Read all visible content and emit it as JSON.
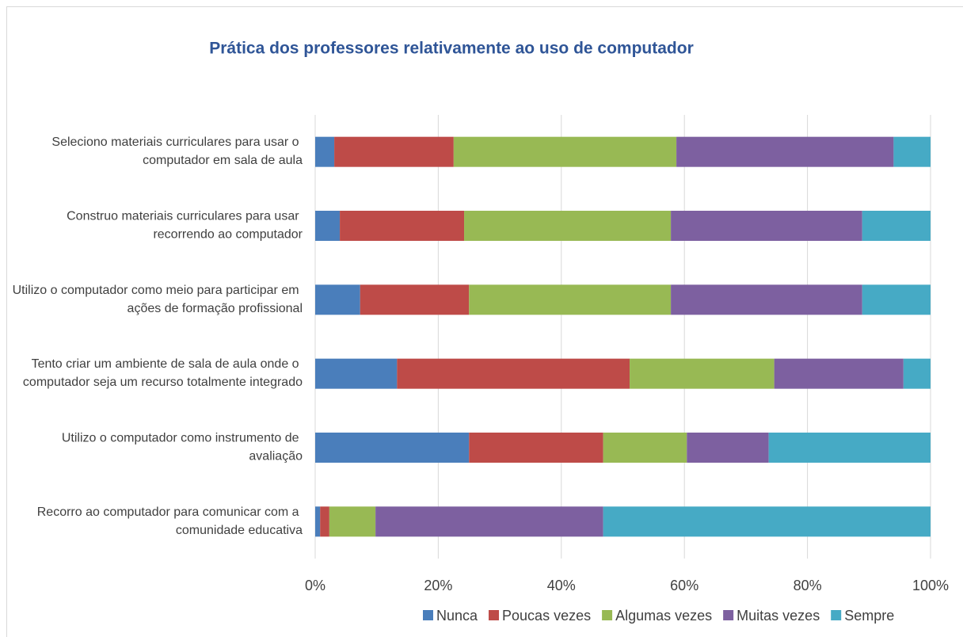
{
  "chart_data": {
    "type": "stacked_barh",
    "title": "Prática dos professores relativamente ao uso de computador",
    "categories": [
      "Seleciono materiais curriculares para usar o computador em sala de aula",
      "Construo materiais curriculares para usar recorrendo ao computador",
      "Utilizo o computador como meio para participar em ações de formação profissional",
      "Tento criar um ambiente de sala de aula onde o computador seja um recurso totalmente integrado",
      "Utilizo o computador como instrumento de avaliação",
      "Recorro ao computador para comunicar com a comunidade educativa"
    ],
    "series": [
      {
        "name": "Nunca",
        "color": "#4a7ebb",
        "values": [
          3.1,
          4.0,
          7.3,
          13.3,
          25.0,
          0.8
        ]
      },
      {
        "name": "Poucas vezes",
        "color": "#be4b48",
        "values": [
          19.4,
          20.2,
          17.7,
          37.8,
          21.8,
          1.5
        ]
      },
      {
        "name": "Algumas vezes",
        "color": "#98b954",
        "values": [
          36.2,
          33.6,
          32.8,
          23.5,
          13.6,
          7.5
        ]
      },
      {
        "name": "Muitas vezes",
        "color": "#7d60a0",
        "values": [
          35.3,
          31.1,
          31.1,
          21.0,
          13.3,
          37.0
        ]
      },
      {
        "name": "Sempre",
        "color": "#46aac5",
        "values": [
          6.0,
          11.1,
          11.1,
          4.4,
          26.3,
          53.2
        ]
      }
    ],
    "xlim": [
      0,
      100
    ],
    "xticks": [
      {
        "value": 0,
        "label": "0%"
      },
      {
        "value": 20,
        "label": "20%"
      },
      {
        "value": 40,
        "label": "40%"
      },
      {
        "value": 60,
        "label": "60%"
      },
      {
        "value": 80,
        "label": "80%"
      },
      {
        "value": 100,
        "label": "100%"
      }
    ],
    "grid": true,
    "legend": "bottom"
  }
}
